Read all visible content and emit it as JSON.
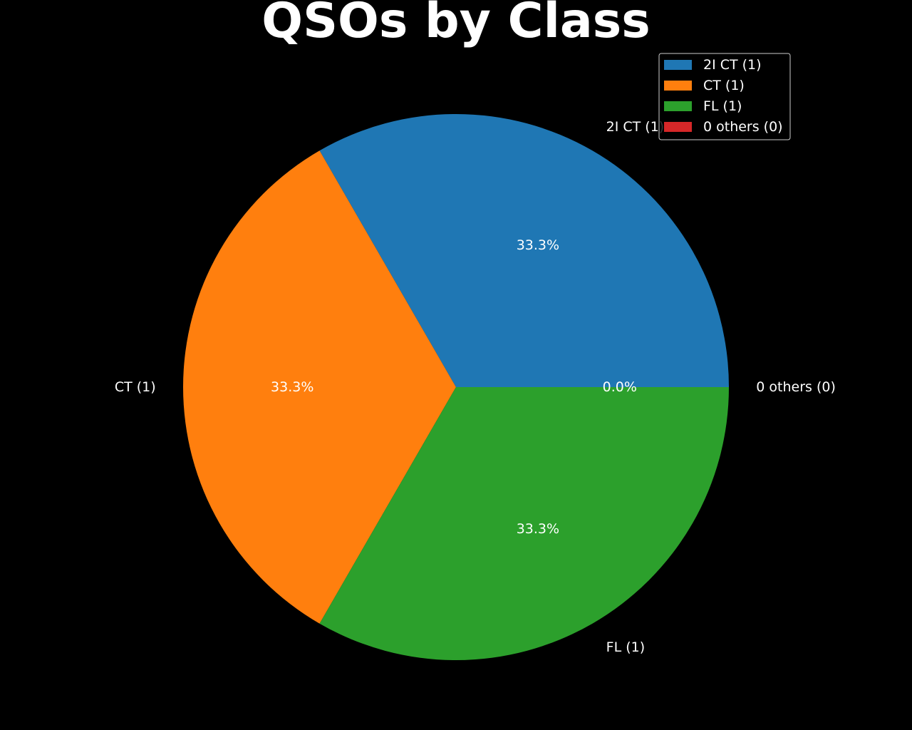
{
  "chart_data": {
    "type": "pie",
    "title": "QSOs by Class",
    "categories": [
      "2I CT (1)",
      "CT (1)",
      "FL (1)",
      "0 others (0)"
    ],
    "values": [
      1,
      1,
      1,
      0
    ],
    "percent_labels": [
      "33.3%",
      "33.3%",
      "33.3%",
      "0.0%"
    ],
    "colors": [
      "#1f77b4",
      "#ff7f0e",
      "#2ca02c",
      "#d62728"
    ],
    "start_angle_deg": 0,
    "direction": "counterclockwise",
    "legend": {
      "placement": "top-right",
      "entries": [
        "2I CT (1)",
        "CT (1)",
        "FL (1)",
        "0 others (0)"
      ]
    },
    "background": "#000000",
    "text_color": "#ffffff"
  }
}
